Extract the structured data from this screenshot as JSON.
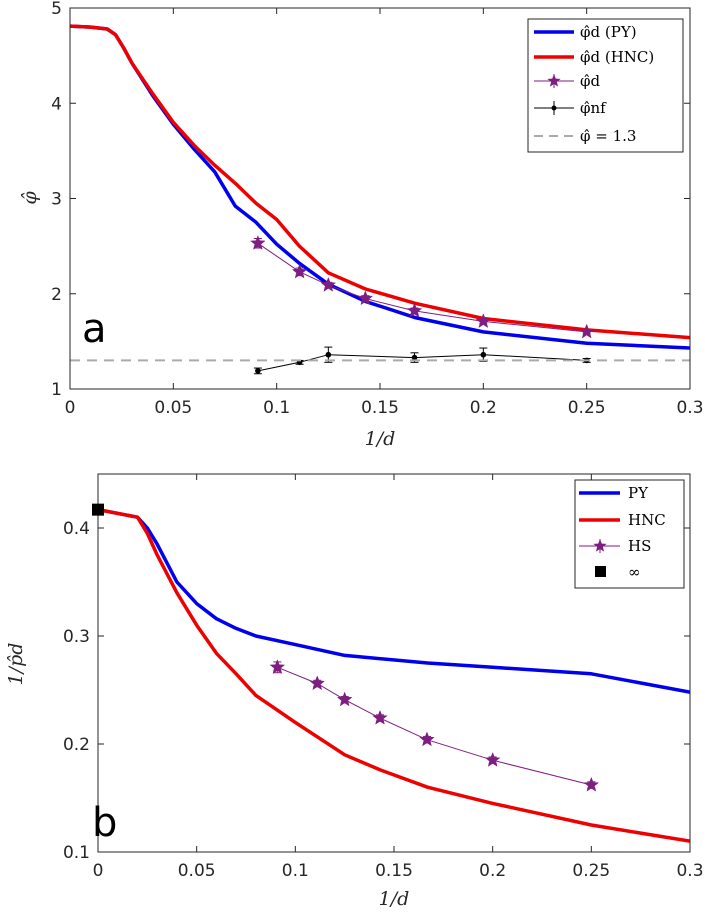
{
  "chart_data": [
    {
      "type": "line",
      "panel_label": "a",
      "xlabel": "1/d",
      "ylabel": "φ̂",
      "xlim": [
        0,
        0.3
      ],
      "ylim": [
        1,
        5
      ],
      "xticks": [
        0,
        0.05,
        0.1,
        0.15,
        0.2,
        0.25,
        0.3
      ],
      "xtick_labels": [
        "0",
        "0.05",
        "0.1",
        "0.15",
        "0.2",
        "0.25",
        "0.3"
      ],
      "yticks": [
        1,
        2,
        3,
        4,
        5
      ],
      "ytick_labels": [
        "1",
        "2",
        "3",
        "4",
        "5"
      ],
      "grid": false,
      "legend_position": "top-right",
      "series": [
        {
          "name": "φ̂_d (PY)",
          "legend": "φ̂d (PY)",
          "color": "#0000ee",
          "style": "line",
          "x": [
            0,
            0.01,
            0.018,
            0.022,
            0.026,
            0.03,
            0.04,
            0.05,
            0.06,
            0.07,
            0.08,
            0.09,
            0.1,
            0.111,
            0.125,
            0.143,
            0.167,
            0.2,
            0.25,
            0.3
          ],
          "y": [
            4.81,
            4.8,
            4.78,
            4.72,
            4.58,
            4.42,
            4.08,
            3.78,
            3.52,
            3.28,
            2.92,
            2.75,
            2.52,
            2.32,
            2.1,
            1.92,
            1.75,
            1.6,
            1.48,
            1.43
          ]
        },
        {
          "name": "φ̂_d (HNC)",
          "legend": "φ̂d (HNC)",
          "color": "#ee0000",
          "style": "line",
          "x": [
            0,
            0.01,
            0.018,
            0.022,
            0.026,
            0.03,
            0.04,
            0.05,
            0.06,
            0.07,
            0.08,
            0.09,
            0.1,
            0.111,
            0.125,
            0.143,
            0.167,
            0.2,
            0.25,
            0.3
          ],
          "y": [
            4.81,
            4.8,
            4.78,
            4.72,
            4.58,
            4.42,
            4.1,
            3.8,
            3.56,
            3.35,
            3.16,
            2.95,
            2.78,
            2.5,
            2.22,
            2.05,
            1.9,
            1.74,
            1.62,
            1.54
          ]
        },
        {
          "name": "φ̂_d",
          "legend": "φ̂d",
          "color": "#7e1e80",
          "style": "star-errorbar",
          "x": [
            0.0909,
            0.1111,
            0.125,
            0.1429,
            0.1667,
            0.2,
            0.25
          ],
          "y": [
            2.53,
            2.23,
            2.09,
            1.95,
            1.82,
            1.71,
            1.6
          ],
          "err": [
            0.05,
            0.04,
            0.03,
            0.03,
            0.03,
            0.02,
            0.02
          ]
        },
        {
          "name": "φ̂_nf",
          "legend": "φ̂nf",
          "color": "#000000",
          "style": "dot-errorbar",
          "x": [
            0.0909,
            0.1111,
            0.125,
            0.1667,
            0.2,
            0.25
          ],
          "y": [
            1.19,
            1.28,
            1.36,
            1.33,
            1.36,
            1.3
          ],
          "err": [
            0.03,
            0.02,
            0.08,
            0.05,
            0.07,
            0.02
          ]
        },
        {
          "name": "φ̂ = 1.3",
          "legend": "φ̂ = 1.3",
          "color": "#aaaaaa",
          "style": "dashed-hline",
          "y": 1.3
        }
      ]
    },
    {
      "type": "line",
      "panel_label": "b",
      "xlabel": "1/d",
      "ylabel": "1/p̂d",
      "xlim": [
        0,
        0.3
      ],
      "ylim": [
        0.1,
        0.45
      ],
      "xticks": [
        0,
        0.05,
        0.1,
        0.15,
        0.2,
        0.25,
        0.3
      ],
      "xtick_labels": [
        "0",
        "0.05",
        "0.1",
        "0.15",
        "0.2",
        "0.25",
        "0.3"
      ],
      "yticks": [
        0.1,
        0.2,
        0.3,
        0.4
      ],
      "ytick_labels": [
        "0.1",
        "0.2",
        "0.3",
        "0.4"
      ],
      "grid": false,
      "legend_position": "top-right",
      "series": [
        {
          "name": "PY",
          "legend": "PY",
          "color": "#0000ee",
          "style": "line",
          "x": [
            0,
            0.02,
            0.025,
            0.03,
            0.04,
            0.05,
            0.06,
            0.07,
            0.08,
            0.1,
            0.125,
            0.167,
            0.2,
            0.25,
            0.3
          ],
          "y": [
            0.417,
            0.41,
            0.4,
            0.385,
            0.35,
            0.33,
            0.316,
            0.307,
            0.3,
            0.292,
            0.282,
            0.275,
            0.271,
            0.265,
            0.248
          ]
        },
        {
          "name": "HNC",
          "legend": "HNC",
          "color": "#ee0000",
          "style": "line",
          "x": [
            0,
            0.02,
            0.025,
            0.03,
            0.04,
            0.05,
            0.06,
            0.07,
            0.08,
            0.1,
            0.125,
            0.143,
            0.167,
            0.2,
            0.25,
            0.3
          ],
          "y": [
            0.417,
            0.41,
            0.395,
            0.375,
            0.34,
            0.31,
            0.284,
            0.265,
            0.245,
            0.22,
            0.19,
            0.176,
            0.16,
            0.145,
            0.125,
            0.11
          ]
        },
        {
          "name": "HS",
          "legend": "HS",
          "color": "#7e1e80",
          "style": "star-errorbar",
          "x": [
            0.0909,
            0.1111,
            0.125,
            0.1429,
            0.1667,
            0.2,
            0.25
          ],
          "y": [
            0.271,
            0.256,
            0.241,
            0.224,
            0.204,
            0.185,
            0.162
          ],
          "err": [
            0.005,
            0.003,
            0.003,
            0.003,
            0.003,
            0.003,
            0.003
          ]
        },
        {
          "name": "∞",
          "legend": "∞",
          "color": "#000000",
          "style": "square",
          "x": [
            0
          ],
          "y": [
            0.417
          ]
        }
      ]
    }
  ]
}
